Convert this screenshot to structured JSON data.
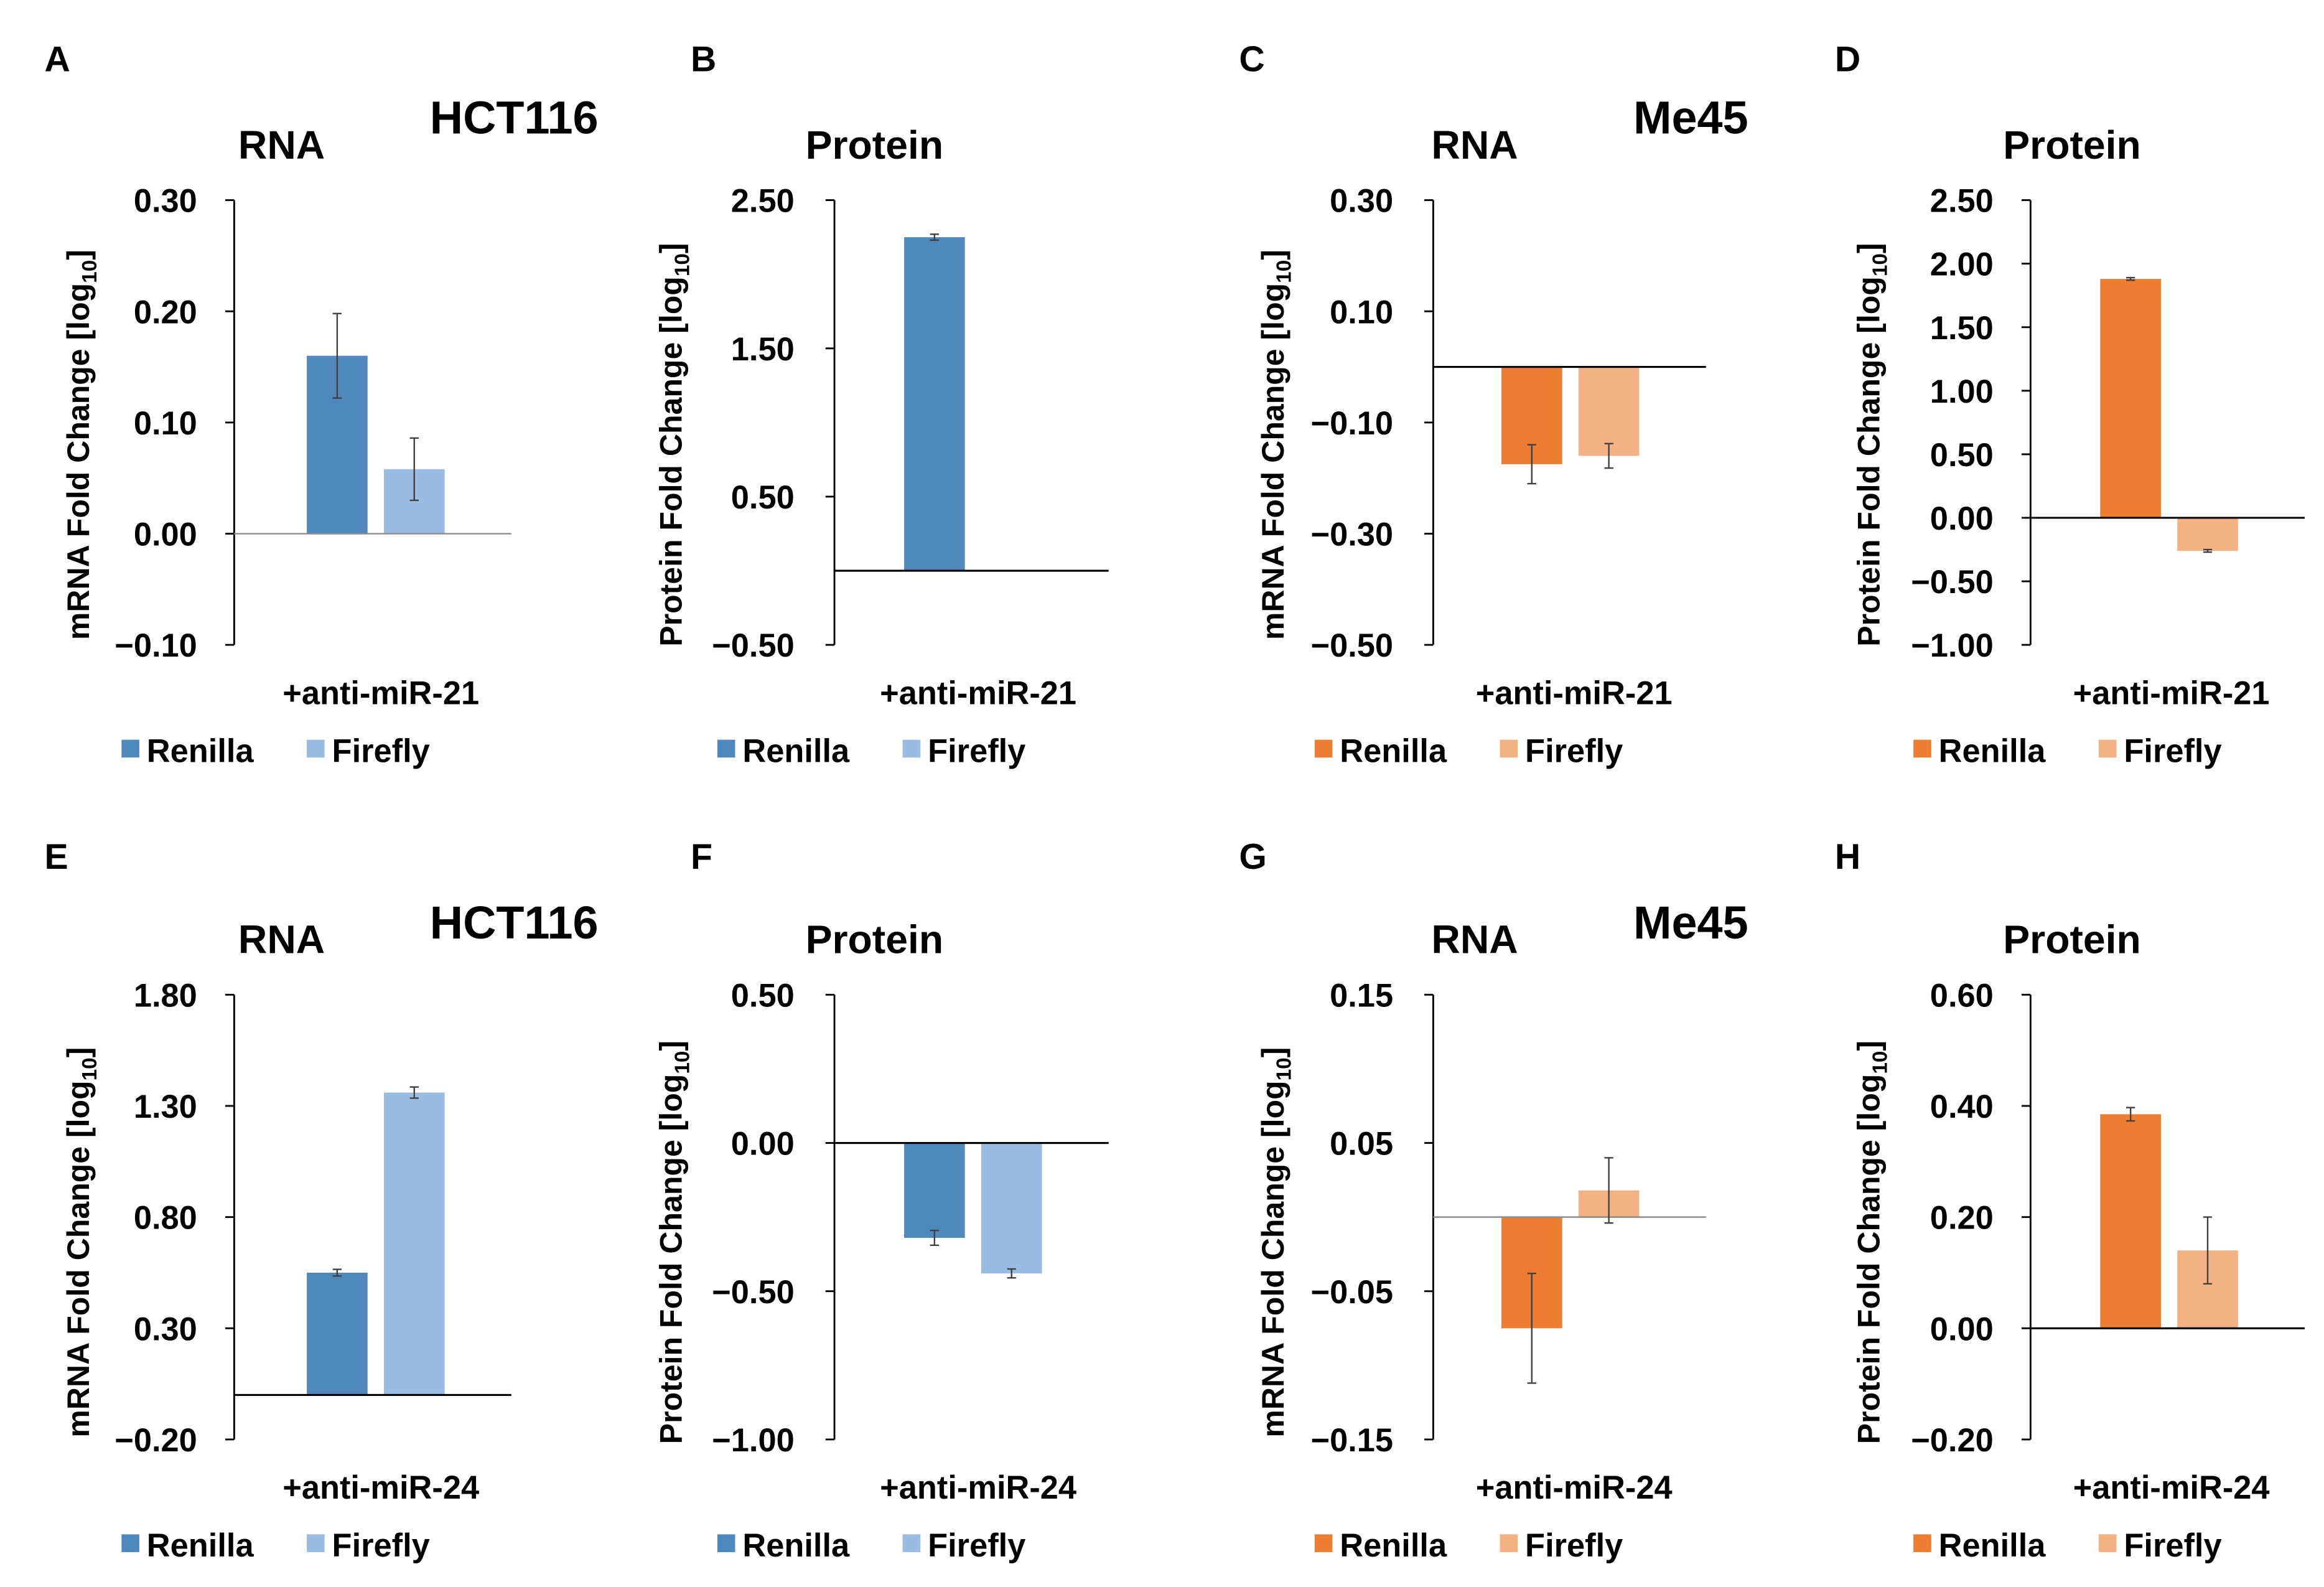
{
  "figure": {
    "colors": {
      "renilla_blue": "#4F88BD",
      "firefly_blue": "#9ABCE2",
      "renilla_orange": "#ED7D31",
      "firefly_orange": "#F4B183",
      "axis": "#000000",
      "zero_line_light": "#8c8c8c"
    }
  },
  "chart_data": [
    {
      "panel": "A",
      "type": "bar",
      "title": "RNA",
      "cell_line": "HCT116",
      "ylabel": "mRNA Fold Change [log10]",
      "ylabel_main": "mRNA Fold Change [log",
      "ylabel_sub": "10",
      "ylabel_end": "]",
      "ylim": [
        -0.1,
        0.3
      ],
      "yticks": [
        {
          "v": 0.3,
          "label": "0.30"
        },
        {
          "v": 0.2,
          "label": "0.20"
        },
        {
          "v": 0.1,
          "label": "0.10"
        },
        {
          "v": 0.0,
          "label": "0.00"
        },
        {
          "v": -0.1,
          "label": "−0.10"
        }
      ],
      "category": "+anti-miR-21",
      "palette": "blue",
      "zero_line": "light",
      "series": [
        {
          "name": "Renilla",
          "value": 0.16,
          "error": 0.038
        },
        {
          "name": "Firefly",
          "value": 0.058,
          "error": 0.028
        }
      ]
    },
    {
      "panel": "B",
      "type": "bar",
      "title": "Protein",
      "cell_line": "",
      "ylabel": "Protein Fold Change [log10]",
      "ylabel_main": "Protein Fold Change [log",
      "ylabel_sub": "10",
      "ylabel_end": "]",
      "ylim": [
        -0.5,
        2.5
      ],
      "yticks": [
        {
          "v": 2.5,
          "label": "2.50"
        },
        {
          "v": 1.5,
          "label": "1.50"
        },
        {
          "v": 0.5,
          "label": "0.50"
        },
        {
          "v": -0.5,
          "label": "−0.50"
        }
      ],
      "category": "+anti-miR-21",
      "palette": "blue",
      "zero_line": "dark",
      "series": [
        {
          "name": "Renilla",
          "value": 2.25,
          "error": 0.02
        },
        {
          "name": "Firefly",
          "value": 0.0,
          "error": 0.0
        }
      ]
    },
    {
      "panel": "C",
      "type": "bar",
      "title": "RNA",
      "cell_line": "Me45",
      "ylabel": "mRNA Fold Change [log10]",
      "ylabel_main": "mRNA Fold Change [log",
      "ylabel_sub": "10",
      "ylabel_end": "]",
      "ylim": [
        -0.5,
        0.3
      ],
      "yticks": [
        {
          "v": 0.3,
          "label": "0.30"
        },
        {
          "v": 0.1,
          "label": "0.10"
        },
        {
          "v": -0.1,
          "label": "−0.10"
        },
        {
          "v": -0.3,
          "label": "−0.30"
        },
        {
          "v": -0.5,
          "label": "−0.50"
        }
      ],
      "category": "+anti-miR-21",
      "palette": "orange",
      "zero_line": "dark",
      "series": [
        {
          "name": "Renilla",
          "value": -0.175,
          "error": 0.035
        },
        {
          "name": "Firefly",
          "value": -0.16,
          "error": 0.022
        }
      ]
    },
    {
      "panel": "D",
      "type": "bar",
      "title": "Protein",
      "cell_line": "",
      "ylabel": "Protein Fold Change [log10]",
      "ylabel_main": "Protein Fold Change [log",
      "ylabel_sub": "10",
      "ylabel_end": "]",
      "ylim": [
        -1.0,
        2.5
      ],
      "yticks": [
        {
          "v": 2.5,
          "label": "2.50"
        },
        {
          "v": 2.0,
          "label": "2.00"
        },
        {
          "v": 1.5,
          "label": "1.50"
        },
        {
          "v": 1.0,
          "label": "1.00"
        },
        {
          "v": 0.5,
          "label": "0.50"
        },
        {
          "v": 0.0,
          "label": "0.00"
        },
        {
          "v": -0.5,
          "label": "−0.50"
        },
        {
          "v": -1.0,
          "label": "−1.00"
        }
      ],
      "category": "+anti-miR-21",
      "palette": "orange",
      "zero_line": "dark",
      "series": [
        {
          "name": "Renilla",
          "value": 1.88,
          "error": 0.01
        },
        {
          "name": "Firefly",
          "value": -0.26,
          "error": 0.01
        }
      ]
    },
    {
      "panel": "E",
      "type": "bar",
      "title": "RNA",
      "cell_line": "HCT116",
      "ylabel": "mRNA Fold Change [log10]",
      "ylabel_main": "mRNA Fold Change [log",
      "ylabel_sub": "10",
      "ylabel_end": "]",
      "ylim": [
        -0.2,
        1.8
      ],
      "yticks": [
        {
          "v": 1.8,
          "label": "1.80"
        },
        {
          "v": 1.3,
          "label": "1.30"
        },
        {
          "v": 0.8,
          "label": "0.80"
        },
        {
          "v": 0.3,
          "label": "0.30"
        },
        {
          "v": -0.2,
          "label": "−0.20"
        }
      ],
      "category": "+anti-miR-24",
      "palette": "blue",
      "zero_line": "dark",
      "series": [
        {
          "name": "Renilla",
          "value": 0.55,
          "error": 0.015
        },
        {
          "name": "Firefly",
          "value": 1.36,
          "error": 0.025
        }
      ]
    },
    {
      "panel": "F",
      "type": "bar",
      "title": "Protein",
      "cell_line": "",
      "ylabel": "Protein Fold Change [log10]",
      "ylabel_main": "Protein Fold Change [log",
      "ylabel_sub": "10",
      "ylabel_end": "]",
      "ylim": [
        -1.0,
        0.5
      ],
      "yticks": [
        {
          "v": 0.5,
          "label": "0.50"
        },
        {
          "v": 0.0,
          "label": "0.00"
        },
        {
          "v": -0.5,
          "label": "−0.50"
        },
        {
          "v": -1.0,
          "label": "−1.00"
        }
      ],
      "category": "+anti-miR-24",
      "palette": "blue",
      "zero_line": "dark",
      "series": [
        {
          "name": "Renilla",
          "value": -0.32,
          "error": 0.025
        },
        {
          "name": "Firefly",
          "value": -0.44,
          "error": 0.015
        }
      ]
    },
    {
      "panel": "G",
      "type": "bar",
      "title": "RNA",
      "cell_line": "Me45",
      "ylabel": "mRNA Fold Change [log10]",
      "ylabel_main": "mRNA Fold Change [log",
      "ylabel_sub": "10",
      "ylabel_end": "]",
      "ylim": [
        -0.15,
        0.15
      ],
      "yticks": [
        {
          "v": 0.15,
          "label": "0.15"
        },
        {
          "v": 0.05,
          "label": "0.05"
        },
        {
          "v": -0.05,
          "label": "−0.05"
        },
        {
          "v": -0.15,
          "label": "−0.15"
        }
      ],
      "category": "+anti-miR-24",
      "palette": "orange",
      "zero_line": "light",
      "series": [
        {
          "name": "Renilla",
          "value": -0.075,
          "error": 0.037
        },
        {
          "name": "Firefly",
          "value": 0.018,
          "error": 0.022
        }
      ]
    },
    {
      "panel": "H",
      "type": "bar",
      "title": "Protein",
      "cell_line": "",
      "ylabel": "Protein Fold Change [log10]",
      "ylabel_main": "Protein Fold Change [log",
      "ylabel_sub": "10",
      "ylabel_end": "]",
      "ylim": [
        -0.2,
        0.6
      ],
      "yticks": [
        {
          "v": 0.6,
          "label": "0.60"
        },
        {
          "v": 0.4,
          "label": "0.40"
        },
        {
          "v": 0.2,
          "label": "0.20"
        },
        {
          "v": 0.0,
          "label": "0.00"
        },
        {
          "v": -0.2,
          "label": "−0.20"
        }
      ],
      "category": "+anti-miR-24",
      "palette": "orange",
      "zero_line": "dark",
      "series": [
        {
          "name": "Renilla",
          "value": 0.385,
          "error": 0.012
        },
        {
          "name": "Firefly",
          "value": 0.14,
          "error": 0.06
        }
      ]
    }
  ]
}
